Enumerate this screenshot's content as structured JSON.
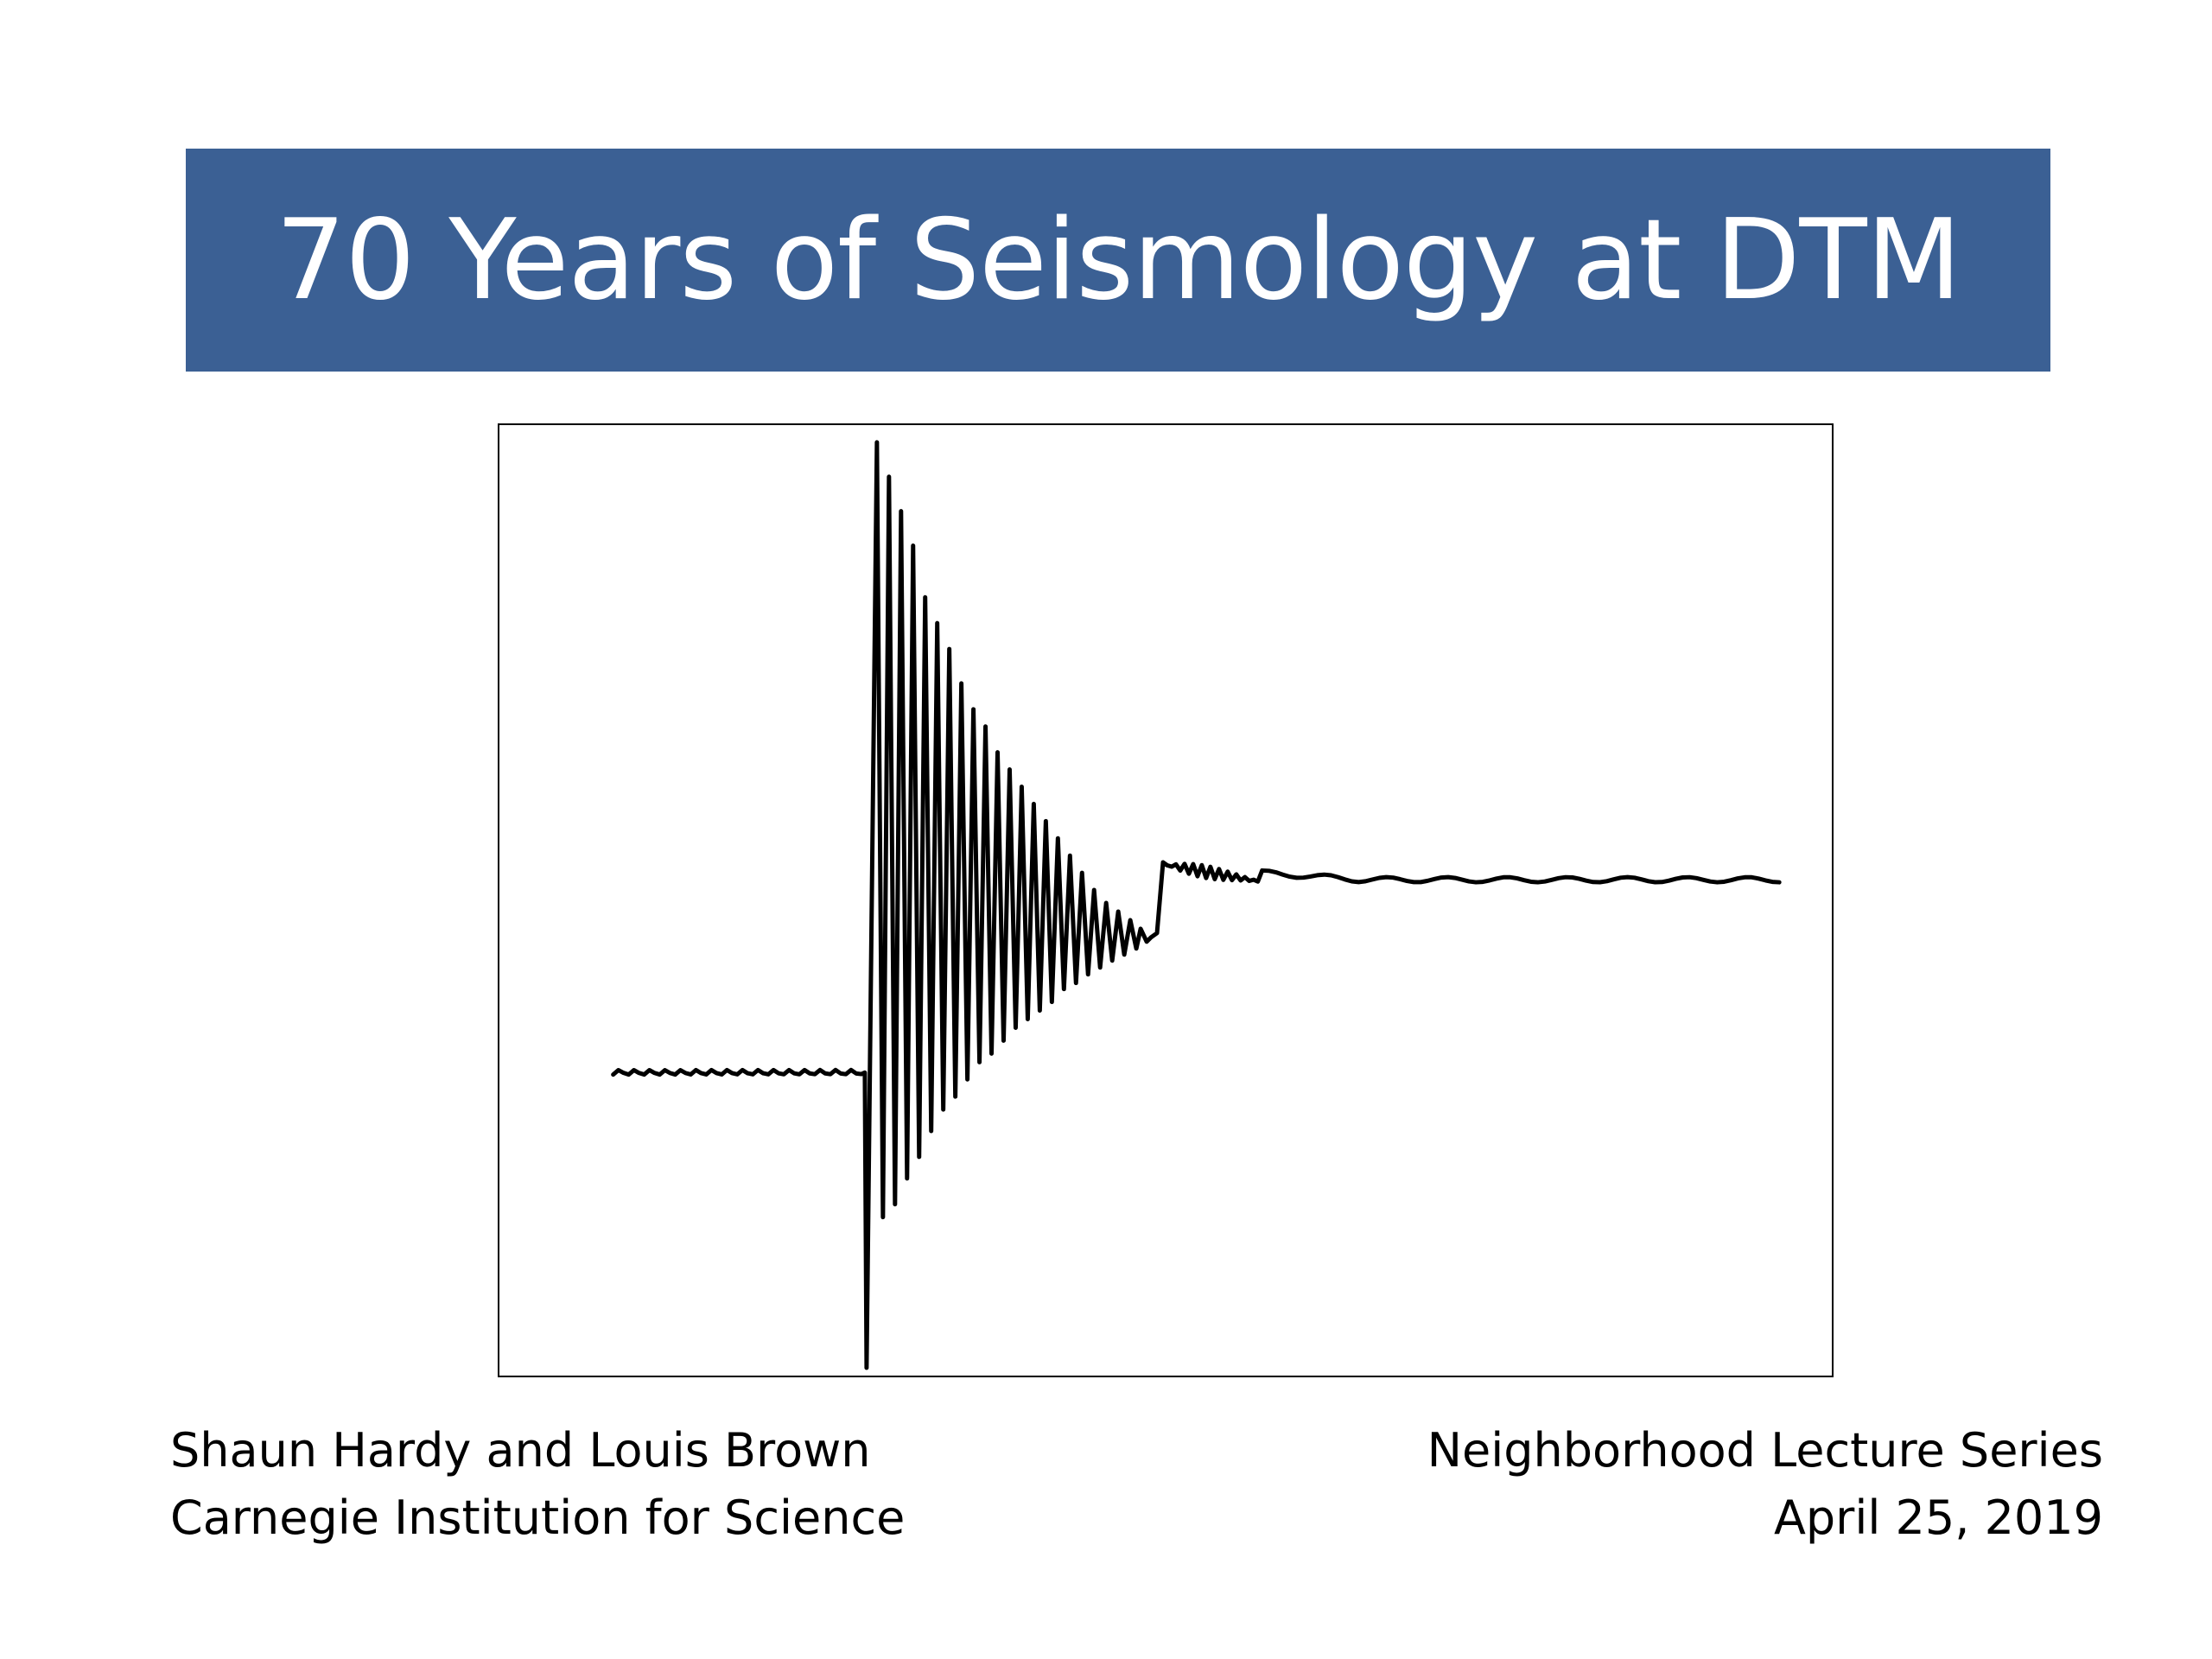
{
  "title": "70 Years of Seismology at DTM",
  "figure": {
    "description_icon": "seismogram-trace"
  },
  "footer": {
    "left_line1": "Shaun Hardy and Louis Brown",
    "left_line2": "Carnegie Institution for Science",
    "right_line1": "Neighborhood Lecture Series",
    "right_line2": "April 25, 2019"
  },
  "colors": {
    "title_bar": "#3b6094",
    "title_text": "#ffffff",
    "trace": "#000000"
  }
}
